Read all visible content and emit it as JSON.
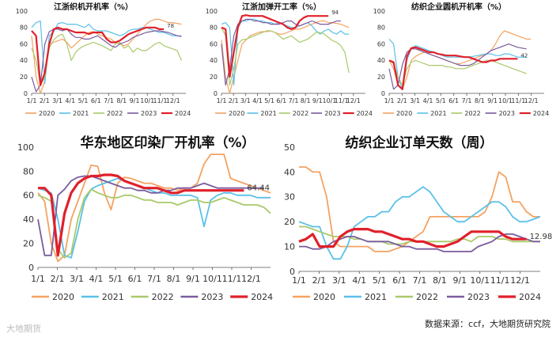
{
  "watermark": "大地期货",
  "source": "数据来源：ccf，大地期货研究院",
  "colors": {
    "2020": "#f4a261",
    "2021": "#5bc0e8",
    "2022": "#a9c96a",
    "2023": "#7a5c9e",
    "2024": "#e0202a"
  },
  "chart_data": [
    {
      "type": "line",
      "title": "江浙织机开机率（%）",
      "ylim": [
        0,
        100
      ],
      "yticks": [
        0,
        20,
        40,
        60,
        80,
        100
      ],
      "xticks": [
        "1/1",
        "2/1",
        "3/1",
        "4/1",
        "5/1",
        "6/1",
        "7/1",
        "8/1",
        "9/1",
        "10/1",
        "11/1",
        "12/1"
      ],
      "end_label": "78",
      "series": [
        {
          "name": "2020",
          "values": [
            70,
            20,
            0,
            15,
            60,
            62,
            64,
            66,
            62,
            55,
            60,
            65,
            70,
            74,
            75,
            72,
            70,
            68,
            66,
            62,
            60,
            58,
            60,
            66,
            72,
            78,
            84,
            88,
            90,
            90,
            88,
            86,
            86,
            85,
            84
          ]
        },
        {
          "name": "2021",
          "values": [
            80,
            86,
            88,
            12,
            70,
            75,
            85,
            86,
            84,
            84,
            84,
            82,
            80,
            84,
            78,
            76,
            76,
            76,
            74,
            72,
            70,
            72,
            76,
            78,
            78,
            80,
            80,
            78,
            76,
            74,
            74,
            72,
            70,
            70,
            70
          ]
        },
        {
          "name": "2022",
          "values": [
            55,
            40,
            10,
            20,
            55,
            65,
            70,
            72,
            60,
            40,
            50,
            55,
            58,
            60,
            62,
            60,
            58,
            55,
            52,
            60,
            62,
            55,
            58,
            50,
            55,
            52,
            52,
            56,
            60,
            62,
            58,
            56,
            54,
            52,
            40
          ]
        },
        {
          "name": "2023",
          "values": [
            20,
            2,
            10,
            60,
            75,
            78,
            78,
            76,
            78,
            72,
            68,
            68,
            66,
            66,
            68,
            70,
            66,
            62,
            58,
            56,
            60,
            62,
            64,
            68,
            70,
            72,
            74,
            75,
            76,
            76,
            75,
            74,
            72,
            70,
            69
          ]
        },
        {
          "name": "2024",
          "values": [
            76,
            70,
            10,
            25,
            60,
            78,
            80,
            78,
            78,
            76,
            74,
            74,
            74,
            72,
            74,
            74,
            74,
            66,
            62,
            62,
            64,
            68,
            72,
            74,
            76,
            78,
            80,
            80,
            80,
            78,
            78
          ]
        }
      ]
    },
    {
      "type": "line",
      "title": "江浙加弹开工率（%）",
      "ylim": [
        0,
        100
      ],
      "yticks": [
        0,
        20,
        40,
        60,
        80,
        100
      ],
      "xticks": [
        "1/1",
        "2/1",
        "3/1",
        "4/1",
        "5/1",
        "6/1",
        "7/1",
        "8/1",
        "9/1",
        "10/1",
        "11/1",
        "12/1"
      ],
      "end_label": "94",
      "series": [
        {
          "name": "2020",
          "values": [
            65,
            20,
            0,
            20,
            40,
            60,
            65,
            70,
            72,
            74,
            75,
            75,
            76,
            74,
            72,
            72,
            74,
            76,
            78,
            78,
            80,
            82,
            84,
            86,
            88,
            88,
            86,
            86,
            85,
            84,
            82,
            80
          ]
        },
        {
          "name": "2021",
          "values": [
            84,
            86,
            80,
            10,
            80,
            88,
            88,
            90,
            90,
            88,
            88,
            86,
            86,
            84,
            86,
            84,
            82,
            80,
            80,
            82,
            84,
            86,
            82,
            76,
            72,
            76,
            78,
            74,
            72,
            76,
            72,
            72
          ]
        },
        {
          "name": "2022",
          "values": [
            80,
            70,
            10,
            30,
            60,
            65,
            66,
            68,
            70,
            72,
            74,
            76,
            76,
            74,
            70,
            66,
            68,
            70,
            66,
            62,
            64,
            66,
            70,
            74,
            74,
            72,
            68,
            64,
            62,
            58,
            50,
            25
          ]
        },
        {
          "name": "2023",
          "values": [
            60,
            10,
            30,
            70,
            84,
            88,
            90,
            90,
            88,
            88,
            86,
            86,
            84,
            84,
            84,
            86,
            88,
            88,
            84,
            82,
            84,
            86,
            88,
            86,
            84,
            84,
            84,
            86,
            88,
            88
          ]
        },
        {
          "name": "2024",
          "values": [
            80,
            78,
            20,
            50,
            80,
            94,
            95,
            94,
            94,
            94,
            94,
            92,
            90,
            88,
            86,
            84,
            80,
            78,
            80,
            88,
            92,
            94,
            94,
            94,
            94,
            94,
            94
          ]
        }
      ]
    },
    {
      "type": "line",
      "title": "纺织企业圆机开机率（%）",
      "ylim": [
        0,
        100
      ],
      "yticks": [
        0,
        20,
        40,
        60,
        80,
        100
      ],
      "xticks": [
        "1/1",
        "2/1",
        "3/1",
        "4/1",
        "5/1",
        "6/1",
        "7/1",
        "8/1",
        "9/1",
        "10/1",
        "11/1",
        "12/1"
      ],
      "end_label": "42",
      "series": [
        {
          "name": "2020",
          "values": [
            40,
            30,
            10,
            5,
            20,
            40,
            45,
            48,
            50,
            48,
            46,
            44,
            42,
            40,
            38,
            36,
            36,
            38,
            40,
            42,
            44,
            46,
            48,
            52,
            60,
            70,
            76,
            74,
            72,
            70,
            68,
            66,
            66
          ]
        },
        {
          "name": "2021",
          "values": [
            66,
            60,
            20,
            5,
            40,
            55,
            58,
            56,
            54,
            52,
            50,
            48,
            46,
            44,
            44,
            44,
            44,
            44,
            44,
            45,
            46,
            47,
            48,
            48,
            46,
            46,
            48,
            48,
            46,
            44,
            44,
            44
          ]
        },
        {
          "name": "2022",
          "values": [
            40,
            36,
            20,
            10,
            30,
            38,
            40,
            38,
            36,
            34,
            34,
            34,
            34,
            32,
            32,
            30,
            30,
            30,
            32,
            34,
            36,
            38,
            40,
            40,
            38,
            36,
            34,
            32,
            30,
            28,
            26,
            24
          ]
        },
        {
          "name": "2023",
          "values": [
            30,
            5,
            10,
            35,
            50,
            54,
            54,
            52,
            50,
            48,
            46,
            44,
            42,
            40,
            38,
            36,
            34,
            34,
            34,
            36,
            40,
            44,
            48,
            52,
            54,
            56,
            58,
            60,
            58,
            56,
            55,
            54
          ]
        },
        {
          "name": "2024",
          "values": [
            40,
            38,
            10,
            5,
            45,
            55,
            56,
            54,
            52,
            50,
            50,
            48,
            47,
            46,
            46,
            46,
            45,
            44,
            44,
            42,
            40,
            38,
            38,
            40,
            40,
            42,
            42,
            42,
            42,
            42
          ]
        }
      ]
    },
    {
      "type": "line",
      "title": "华东地区印染厂开机率（%）",
      "ylim": [
        0,
        100
      ],
      "yticks": [
        0,
        20,
        40,
        60,
        80,
        100
      ],
      "xticks": [
        "1/1",
        "2/1",
        "3/1",
        "4/1",
        "5/1",
        "6/1",
        "7/1",
        "8/1",
        "9/1",
        "10/1",
        "11/1",
        "12/1"
      ],
      "end_label": "64.44",
      "series": [
        {
          "name": "2020",
          "values": [
            62,
            55,
            20,
            5,
            10,
            40,
            55,
            70,
            85,
            84,
            62,
            48,
            70,
            75,
            74,
            72,
            70,
            70,
            68,
            66,
            66,
            64,
            66,
            66,
            70,
            86,
            94,
            94,
            94,
            74,
            72,
            70,
            68,
            66,
            64,
            62
          ]
        },
        {
          "name": "2021",
          "values": [
            66,
            64,
            62,
            40,
            10,
            8,
            30,
            55,
            65,
            68,
            70,
            72,
            74,
            72,
            70,
            68,
            66,
            64,
            62,
            62,
            60,
            60,
            60,
            60,
            58,
            34,
            56,
            60,
            62,
            62,
            60,
            60,
            60,
            58,
            58,
            58
          ]
        },
        {
          "name": "2022",
          "values": [
            60,
            58,
            55,
            15,
            8,
            12,
            40,
            58,
            65,
            62,
            60,
            58,
            58,
            60,
            60,
            58,
            56,
            56,
            54,
            54,
            54,
            52,
            54,
            56,
            56,
            54,
            54,
            56,
            58,
            56,
            54,
            52,
            52,
            52,
            50,
            45
          ]
        },
        {
          "name": "2023",
          "values": [
            40,
            10,
            10,
            60,
            65,
            72,
            75,
            76,
            76,
            74,
            72,
            70,
            68,
            66,
            66,
            64,
            64,
            62,
            62,
            64,
            64,
            66,
            66,
            66,
            68,
            70,
            68,
            66,
            66,
            66,
            66,
            66,
            66,
            66,
            66
          ]
        },
        {
          "name": "2024",
          "values": [
            66,
            66,
            60,
            10,
            45,
            62,
            70,
            74,
            76,
            76,
            77,
            77,
            76,
            72,
            70,
            68,
            66,
            66,
            66,
            64,
            62,
            62,
            64,
            64,
            64,
            64,
            64,
            64,
            64,
            64,
            64,
            64
          ]
        }
      ]
    },
    {
      "type": "line",
      "title": "纺织企业订单天数（周）",
      "ylim": [
        0,
        50
      ],
      "yticks": [
        0,
        10,
        20,
        30,
        40,
        50
      ],
      "xticks": [
        "1/1",
        "2/1",
        "3/1",
        "4/1",
        "5/1",
        "6/1",
        "7/1",
        "8/1",
        "9/1",
        "10/1",
        "11/1",
        "12/1"
      ],
      "end_label": "12.98",
      "series": [
        {
          "name": "2020",
          "values": [
            42,
            42,
            40,
            40,
            30,
            12,
            10,
            10,
            10,
            10,
            10,
            8,
            8,
            8,
            9,
            10,
            12,
            14,
            16,
            22,
            22,
            22,
            22,
            22,
            22,
            22,
            22,
            24,
            30,
            40,
            38,
            28,
            28,
            24,
            22,
            22
          ]
        },
        {
          "name": "2021",
          "values": [
            20,
            19,
            18,
            18,
            10,
            5,
            5,
            10,
            18,
            20,
            22,
            22,
            24,
            24,
            28,
            30,
            30,
            32,
            34,
            32,
            28,
            24,
            22,
            20,
            20,
            22,
            24,
            26,
            28,
            28,
            26,
            22,
            20,
            20,
            21,
            22
          ]
        },
        {
          "name": "2022",
          "values": [
            18,
            18,
            17,
            16,
            15,
            14,
            14,
            14,
            13,
            13,
            12,
            12,
            12,
            11,
            11,
            11,
            12,
            12,
            12,
            12,
            12,
            12,
            12,
            13,
            13,
            12,
            14,
            14,
            14,
            13,
            13,
            12,
            12,
            12,
            12,
            12
          ]
        },
        {
          "name": "2023",
          "values": [
            10,
            10,
            9,
            9,
            10,
            12,
            13,
            14,
            14,
            13,
            12,
            12,
            12,
            12,
            11,
            10,
            10,
            9,
            9,
            9,
            9,
            8,
            8,
            8,
            8,
            8,
            10,
            11,
            12,
            14,
            15,
            15,
            14,
            13,
            12,
            12
          ]
        },
        {
          "name": "2024",
          "values": [
            12,
            13,
            15,
            10,
            10,
            10,
            14,
            16,
            17,
            17,
            17,
            16,
            16,
            15,
            14,
            13,
            13,
            12,
            12,
            11,
            10,
            10,
            11,
            12,
            14,
            16,
            16,
            16,
            16,
            16,
            14,
            13,
            13,
            13
          ]
        }
      ]
    }
  ]
}
